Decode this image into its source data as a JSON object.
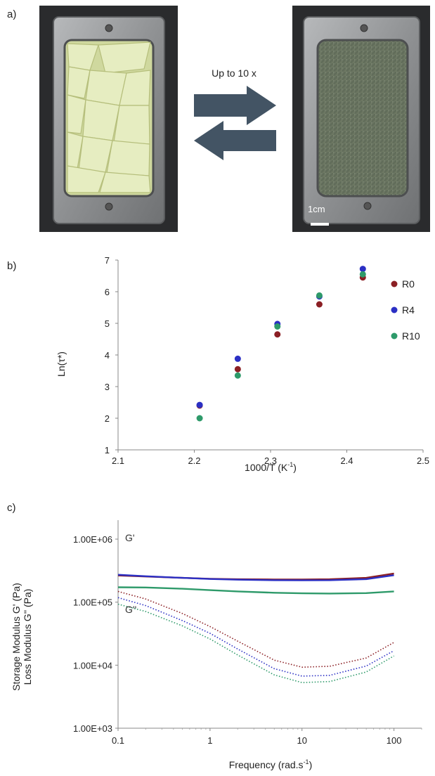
{
  "panel_a": {
    "label": "a)",
    "arrow_text": "Up to 10 x",
    "scale_bar_label": "1cm",
    "colors": {
      "frame": "#9a9c9e",
      "arrow": "#435464",
      "shards": "#dde6b0",
      "film": "#6f7a66"
    }
  },
  "panel_b": {
    "label": "b)",
    "colors": {
      "R0": "#8b1f24",
      "R4": "#2b2fc4",
      "R10": "#2e9a6a"
    },
    "chart_data": {
      "type": "scatter",
      "xlabel": "1000/T (K",
      "xlabel_sup": "-1",
      "xlabel_close": ")",
      "ylabel": "Ln(τ*)",
      "xlim": [
        2.1,
        2.5
      ],
      "ylim": [
        1,
        7
      ],
      "xticks": [
        "2.1",
        "2.2",
        "2.3",
        "2.4",
        "2.5"
      ],
      "yticks": [
        "1",
        "2",
        "3",
        "4",
        "5",
        "6",
        "7"
      ],
      "legend_position": "top-right",
      "series": [
        {
          "name": "R0",
          "x": [
            2.207,
            2.257,
            2.309,
            2.364,
            2.421
          ],
          "y": [
            2.4,
            3.55,
            4.65,
            5.6,
            6.45
          ]
        },
        {
          "name": "R4",
          "x": [
            2.207,
            2.257,
            2.309,
            2.364,
            2.421
          ],
          "y": [
            2.42,
            3.88,
            4.98,
            5.85,
            6.72
          ]
        },
        {
          "name": "R10",
          "x": [
            2.207,
            2.257,
            2.309,
            2.364,
            2.421
          ],
          "y": [
            2.0,
            3.35,
            4.9,
            5.88,
            6.55
          ]
        }
      ]
    }
  },
  "panel_c": {
    "label": "c)",
    "colors": {
      "R0": "#8b1f24",
      "R4": "#2b2fc4",
      "R10": "#2e9a6a"
    },
    "chart_data": {
      "type": "line",
      "xscale": "log",
      "yscale": "log",
      "xlim": [
        0.1,
        200
      ],
      "ylim": [
        1000,
        2000000
      ],
      "xticks": [
        "0.1",
        "1",
        "10",
        "100"
      ],
      "yticks": [
        "1.00E+03",
        "1.00E+04",
        "1.00E+05",
        "1.00E+06"
      ],
      "xlabel": "Frequency (rad.s",
      "xlabel_sup": "-1",
      "xlabel_close": ")",
      "ylabel_line1": "Storage Modulus G' (Pa)",
      "ylabel_line2": "Loss Modulus G'' (Pa)",
      "annotations": [
        "G'",
        "G''"
      ],
      "x": [
        0.1,
        0.2,
        0.5,
        1,
        2,
        5,
        10,
        20,
        50,
        100
      ],
      "series": [
        {
          "key": "R0",
          "modulus": "storage",
          "style": "solid",
          "values": [
            265000,
            255000,
            243000,
            235000,
            231000,
            229000,
            229000,
            231000,
            243000,
            285000
          ]
        },
        {
          "key": "R4",
          "modulus": "storage",
          "style": "solid",
          "values": [
            272000,
            258000,
            243000,
            233000,
            227000,
            223000,
            222000,
            223000,
            232000,
            268000
          ]
        },
        {
          "key": "R10",
          "modulus": "storage",
          "style": "solid",
          "values": [
            172000,
            171000,
            163000,
            155000,
            148000,
            141000,
            138000,
            137000,
            139000,
            148000
          ]
        },
        {
          "key": "R0",
          "modulus": "loss",
          "style": "dotted",
          "values": [
            148000,
            112000,
            66000,
            41000,
            24000,
            12000,
            9300,
            9600,
            13000,
            23000
          ]
        },
        {
          "key": "R4",
          "modulus": "loss",
          "style": "dotted",
          "values": [
            118000,
            88000,
            51000,
            32000,
            18000,
            8800,
            6700,
            6900,
            9700,
            17000
          ]
        },
        {
          "key": "R10",
          "modulus": "loss",
          "style": "dotted",
          "values": [
            93000,
            71000,
            42000,
            26000,
            14500,
            7000,
            5300,
            5500,
            7800,
            14000
          ]
        }
      ]
    }
  }
}
